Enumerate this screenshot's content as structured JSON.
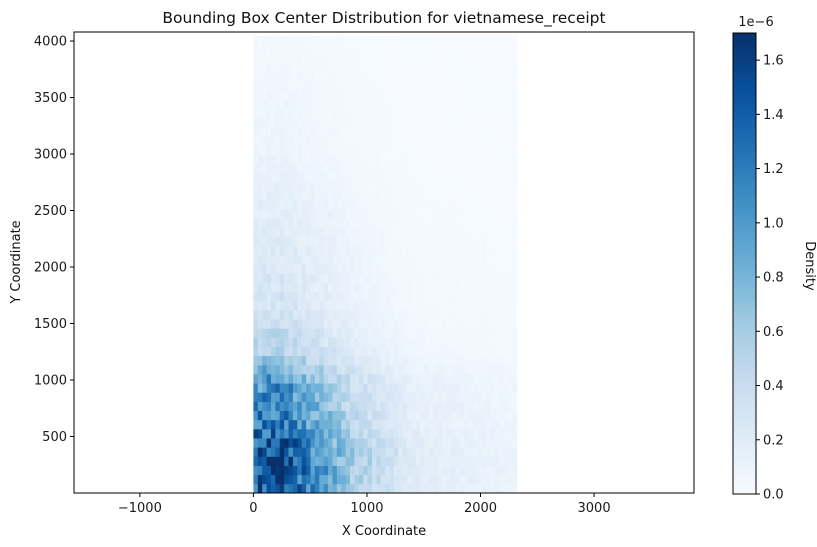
{
  "chart_data": {
    "type": "heatmap",
    "title": "Bounding Box Center Distribution for vietnamese_receipt",
    "xlabel": "X Coordinate",
    "ylabel": "Y Coordinate",
    "xlim": [
      -1580,
      3880
    ],
    "ylim": [
      0,
      4080
    ],
    "xticks": [
      -1000,
      0,
      1000,
      2000,
      3000
    ],
    "xtick_labels": [
      "−1000",
      "0",
      "1000",
      "2000",
      "3000"
    ],
    "yticks": [
      500,
      1000,
      1500,
      2000,
      2500,
      3000,
      3500,
      4000
    ],
    "ytick_labels": [
      "500",
      "1000",
      "1500",
      "2000",
      "2500",
      "3000",
      "3500",
      "4000"
    ],
    "x_extent": [
      0,
      2320
    ],
    "y_extent": [
      0,
      4050
    ],
    "colormap": "Blues",
    "colorbar": {
      "label": "Density",
      "range": [
        0,
        1.7
      ],
      "ticks": [
        0.0,
        0.2,
        0.4,
        0.6,
        0.8,
        1.0,
        1.2,
        1.4,
        1.6
      ],
      "tick_labels": [
        "0.0",
        "0.2",
        "0.4",
        "0.6",
        "0.8",
        "1.0",
        "1.2",
        "1.4",
        "1.6"
      ],
      "multiplier": "1e−6"
    },
    "density_profile_y": [
      {
        "y": 0,
        "value": 1.5
      },
      {
        "y": 300,
        "value": 1.7
      },
      {
        "y": 600,
        "value": 1.3
      },
      {
        "y": 1000,
        "value": 1.05
      },
      {
        "y": 1250,
        "value": 0.55
      },
      {
        "y": 1600,
        "value": 0.33
      },
      {
        "y": 2000,
        "value": 0.26
      },
      {
        "y": 2500,
        "value": 0.18
      },
      {
        "y": 3000,
        "value": 0.1
      },
      {
        "y": 4050,
        "value": 0.04
      }
    ],
    "density_profile_x": [
      {
        "x": 0,
        "value": 0.9
      },
      {
        "x": 250,
        "value": 1.0
      },
      {
        "x": 500,
        "value": 0.7
      },
      {
        "x": 900,
        "value": 0.35
      },
      {
        "x": 1400,
        "value": 0.12
      },
      {
        "x": 2320,
        "value": 0.06
      }
    ]
  }
}
